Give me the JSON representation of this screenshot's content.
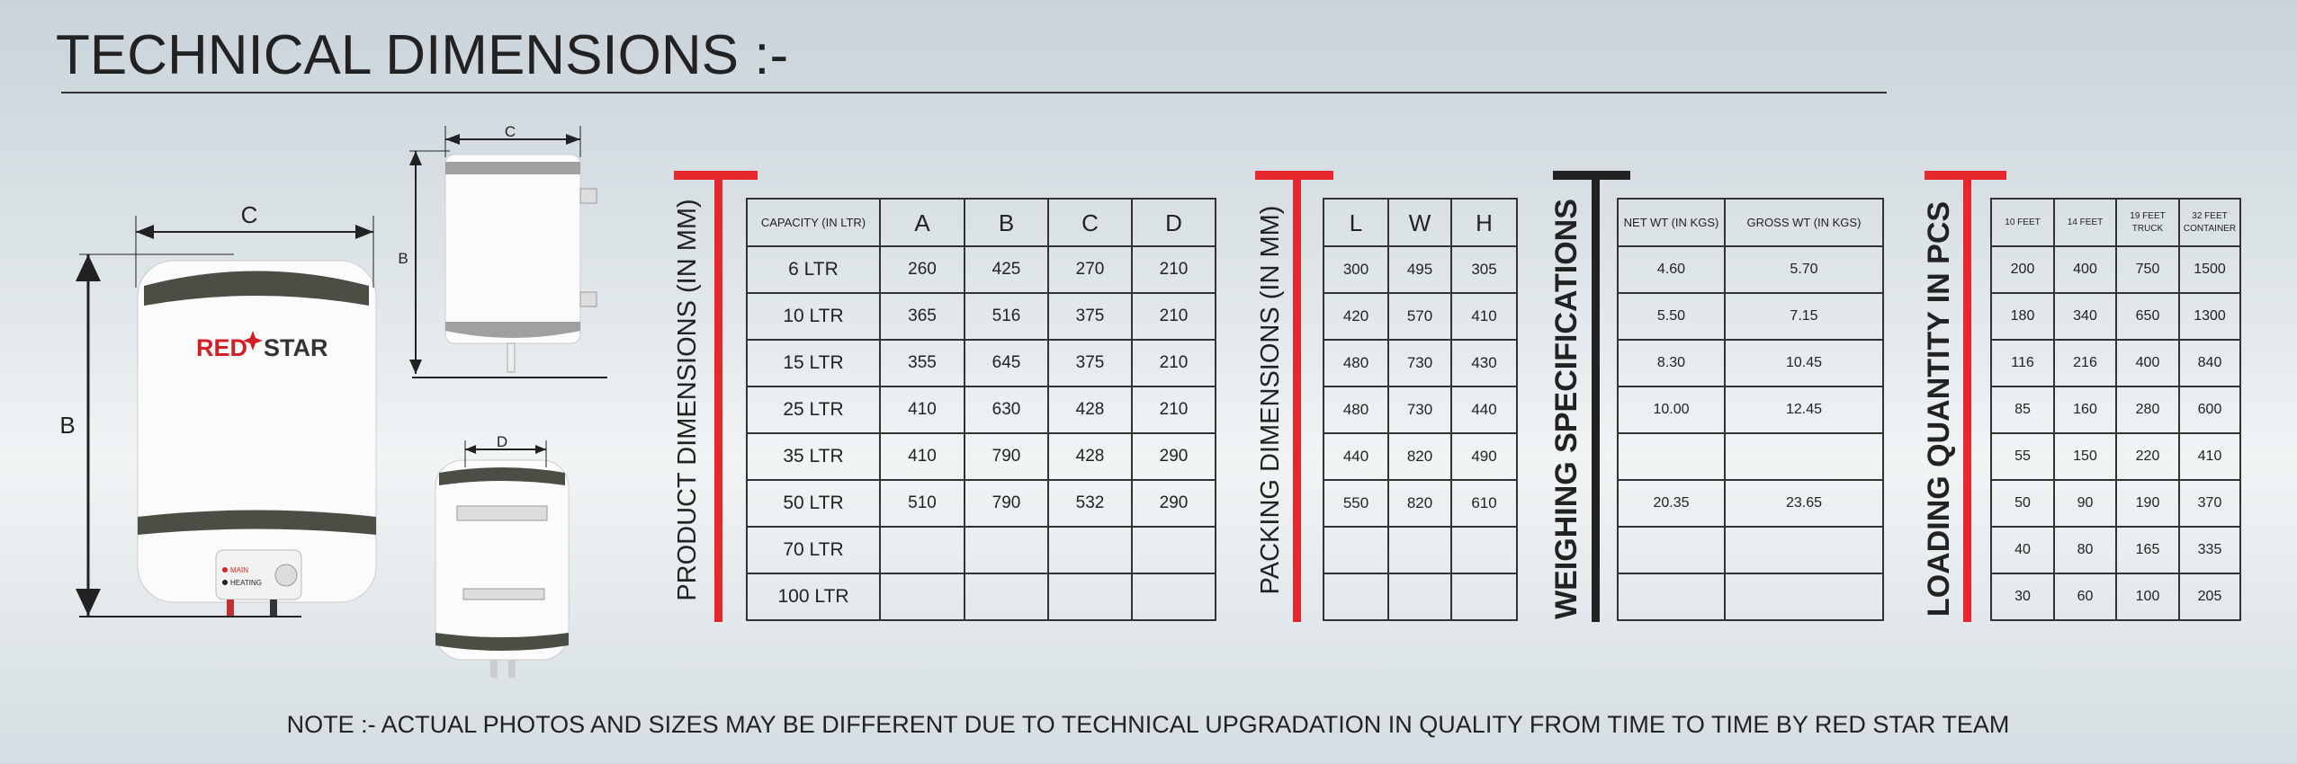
{
  "header": {
    "title": "TECHNICAL DIMENSIONS :-"
  },
  "diagram": {
    "main_width": "C",
    "main_height": "B",
    "top_width": "C",
    "top_height": "B",
    "bottom_width": "D",
    "brand": [
      "RED",
      "STAR"
    ],
    "switch_labels": [
      "MAIN",
      "HEATING"
    ]
  },
  "product_table": {
    "heading": "PRODUCT DIMENSIONS (IN MM)",
    "columns": [
      "CAPACITY (IN LTR)",
      "A",
      "B",
      "C",
      "D"
    ],
    "rows": [
      [
        "6 LTR",
        "260",
        "425",
        "270",
        "210"
      ],
      [
        "10 LTR",
        "365",
        "516",
        "375",
        "210"
      ],
      [
        "15 LTR",
        "355",
        "645",
        "375",
        "210"
      ],
      [
        "25 LTR",
        "410",
        "630",
        "428",
        "210"
      ],
      [
        "35 LTR",
        "410",
        "790",
        "428",
        "290"
      ],
      [
        "50 LTR",
        "510",
        "790",
        "532",
        "290"
      ],
      [
        "70 LTR",
        null,
        null,
        null,
        null
      ],
      [
        "100 LTR",
        null,
        null,
        null,
        null
      ]
    ]
  },
  "packing_table": {
    "heading": "PACKING DIMENSIONS (IN MM)",
    "columns": [
      "L",
      "W",
      "H"
    ],
    "rows": [
      [
        "300",
        "495",
        "305"
      ],
      [
        "420",
        "570",
        "410"
      ],
      [
        "480",
        "730",
        "430"
      ],
      [
        "480",
        "730",
        "440"
      ],
      [
        "440",
        "820",
        "490"
      ],
      [
        "550",
        "820",
        "610"
      ],
      [
        null,
        null,
        null
      ],
      [
        null,
        null,
        null
      ]
    ]
  },
  "weighing_table": {
    "heading": "WEIGHING SPECIFICATIONS",
    "columns": [
      "NET WT (IN KGS)",
      "GROSS WT (IN KGS)"
    ],
    "rows": [
      [
        "4.60",
        "5.70"
      ],
      [
        "5.50",
        "7.15"
      ],
      [
        "8.30",
        "10.45"
      ],
      [
        "10.00",
        "12.45"
      ],
      [
        null,
        null
      ],
      [
        "20.35",
        "23.65"
      ],
      [
        null,
        null
      ],
      [
        null,
        null
      ]
    ]
  },
  "loading_table": {
    "heading": "LOADING QUANTITY IN PCS",
    "columns": [
      "10 FEET",
      "14 FEET",
      "19 FEET TRUCK",
      "32 FEET CONTAINER"
    ],
    "rows": [
      [
        "200",
        "400",
        "750",
        "1500"
      ],
      [
        "180",
        "340",
        "650",
        "1300"
      ],
      [
        "116",
        "216",
        "400",
        "840"
      ],
      [
        "85",
        "160",
        "280",
        "600"
      ],
      [
        "55",
        "150",
        "220",
        "410"
      ],
      [
        "50",
        "90",
        "190",
        "370"
      ],
      [
        "40",
        "80",
        "165",
        "335"
      ],
      [
        "30",
        "60",
        "100",
        "205"
      ]
    ]
  },
  "note": "NOTE :- ACTUAL PHOTOS AND SIZES MAY BE DIFFERENT DUE TO TECHNICAL UPGRADATION IN QUALITY FROM TIME TO TIME BY RED STAR TEAM"
}
